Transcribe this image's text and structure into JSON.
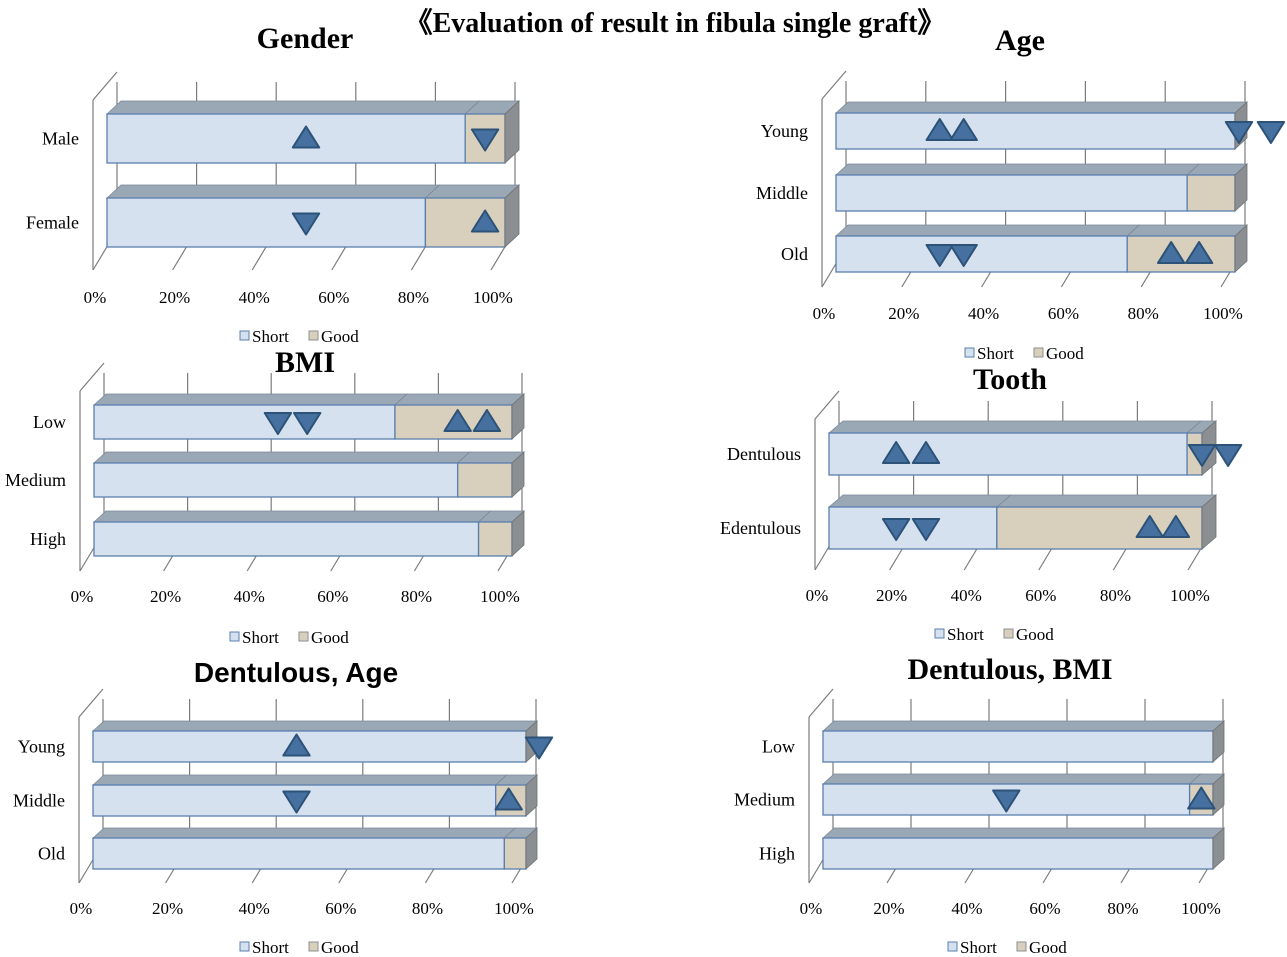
{
  "figure_title": "《Evaluation of result in fibula single graft》",
  "colors": {
    "short": "#d5e1ef",
    "good": "#d8cfbc",
    "edge": "#5a7fae",
    "top_face": "#9aa7b4",
    "side_face": "#8c8f91",
    "marker": "#4670a0",
    "marker_edge": "#2d5278"
  },
  "chart_data": [
    {
      "type": "bar",
      "stacked": true,
      "orientation": "horizontal",
      "title": "Gender",
      "categories": [
        "Male",
        "Female"
      ],
      "series": [
        {
          "name": "Short",
          "values": [
            90,
            80
          ]
        },
        {
          "name": "Good",
          "values": [
            10,
            20
          ]
        }
      ],
      "xlim": [
        0,
        100
      ],
      "ticks": [
        "0%",
        "20%",
        "40%",
        "60%",
        "80%",
        "100%"
      ],
      "legend": "bottom",
      "markers": [
        {
          "category": "Male",
          "x": 50,
          "dir": "up"
        },
        {
          "category": "Male",
          "x": 95,
          "dir": "down"
        },
        {
          "category": "Female",
          "x": 50,
          "dir": "down"
        },
        {
          "category": "Female",
          "x": 95,
          "dir": "up"
        }
      ]
    },
    {
      "type": "bar",
      "stacked": true,
      "orientation": "horizontal",
      "title": "Age",
      "categories": [
        "Young",
        "Middle",
        "Old"
      ],
      "series": [
        {
          "name": "Short",
          "values": [
            100,
            88,
            73
          ]
        },
        {
          "name": "Good",
          "values": [
            0,
            12,
            27
          ]
        }
      ],
      "xlim": [
        0,
        100
      ],
      "ticks": [
        "0%",
        "20%",
        "40%",
        "60%",
        "80%",
        "100%"
      ],
      "legend": "bottom",
      "markers": [
        {
          "category": "Young",
          "x": 26,
          "dir": "up"
        },
        {
          "category": "Young",
          "x": 32,
          "dir": "up"
        },
        {
          "category": "Young",
          "x": 101,
          "dir": "down"
        },
        {
          "category": "Young",
          "x": 109,
          "dir": "down"
        },
        {
          "category": "Old",
          "x": 26,
          "dir": "down"
        },
        {
          "category": "Old",
          "x": 32,
          "dir": "down"
        },
        {
          "category": "Old",
          "x": 84,
          "dir": "up"
        },
        {
          "category": "Old",
          "x": 91,
          "dir": "up"
        }
      ]
    },
    {
      "type": "bar",
      "stacked": true,
      "orientation": "horizontal",
      "title": "BMI",
      "categories": [
        "Low",
        "Medium",
        "High"
      ],
      "series": [
        {
          "name": "Short",
          "values": [
            72,
            87,
            92
          ]
        },
        {
          "name": "Good",
          "values": [
            28,
            13,
            8
          ]
        }
      ],
      "xlim": [
        0,
        100
      ],
      "ticks": [
        "0%",
        "20%",
        "40%",
        "60%",
        "80%",
        "100%"
      ],
      "legend": "bottom",
      "markers": [
        {
          "category": "Low",
          "x": 44,
          "dir": "down"
        },
        {
          "category": "Low",
          "x": 51,
          "dir": "down"
        },
        {
          "category": "Low",
          "x": 87,
          "dir": "up"
        },
        {
          "category": "Low",
          "x": 94,
          "dir": "up"
        }
      ]
    },
    {
      "type": "bar",
      "stacked": true,
      "orientation": "horizontal",
      "title": "Tooth",
      "categories": [
        "Dentulous",
        "Edentulous"
      ],
      "series": [
        {
          "name": "Short",
          "values": [
            96,
            45
          ]
        },
        {
          "name": "Good",
          "values": [
            4,
            55
          ]
        }
      ],
      "xlim": [
        0,
        100
      ],
      "ticks": [
        "0%",
        "20%",
        "40%",
        "60%",
        "80%",
        "100%"
      ],
      "legend": "bottom",
      "markers": [
        {
          "category": "Dentulous",
          "x": 18,
          "dir": "up"
        },
        {
          "category": "Dentulous",
          "x": 26,
          "dir": "up"
        },
        {
          "category": "Dentulous",
          "x": 100,
          "dir": "down"
        },
        {
          "category": "Dentulous",
          "x": 107,
          "dir": "down"
        },
        {
          "category": "Edentulous",
          "x": 18,
          "dir": "down"
        },
        {
          "category": "Edentulous",
          "x": 26,
          "dir": "down"
        },
        {
          "category": "Edentulous",
          "x": 86,
          "dir": "up"
        },
        {
          "category": "Edentulous",
          "x": 93,
          "dir": "up"
        }
      ]
    },
    {
      "type": "bar",
      "stacked": true,
      "orientation": "horizontal",
      "title": "Dentulous, Age",
      "categories": [
        "Young",
        "Middle",
        "Old"
      ],
      "series": [
        {
          "name": "Short",
          "values": [
            100,
            93,
            95
          ]
        },
        {
          "name": "Good",
          "values": [
            0,
            7,
            5
          ]
        }
      ],
      "xlim": [
        0,
        100
      ],
      "ticks": [
        "0%",
        "20%",
        "40%",
        "60%",
        "80%",
        "100%"
      ],
      "legend": "bottom",
      "markers": [
        {
          "category": "Young",
          "x": 47,
          "dir": "up"
        },
        {
          "category": "Young",
          "x": 103,
          "dir": "down"
        },
        {
          "category": "Middle",
          "x": 47,
          "dir": "down"
        },
        {
          "category": "Middle",
          "x": 96,
          "dir": "up"
        }
      ]
    },
    {
      "type": "bar",
      "stacked": true,
      "orientation": "horizontal",
      "title": "Dentulous, BMI",
      "categories": [
        "Low",
        "Medium",
        "High"
      ],
      "series": [
        {
          "name": "Short",
          "values": [
            100,
            94,
            100
          ]
        },
        {
          "name": "Good",
          "values": [
            0,
            6,
            0
          ]
        }
      ],
      "xlim": [
        0,
        100
      ],
      "ticks": [
        "0%",
        "20%",
        "40%",
        "60%",
        "80%",
        "100%"
      ],
      "legend": "bottom",
      "markers": [
        {
          "category": "Medium",
          "x": 47,
          "dir": "down"
        },
        {
          "category": "Medium",
          "x": 97,
          "dir": "up"
        }
      ]
    }
  ]
}
